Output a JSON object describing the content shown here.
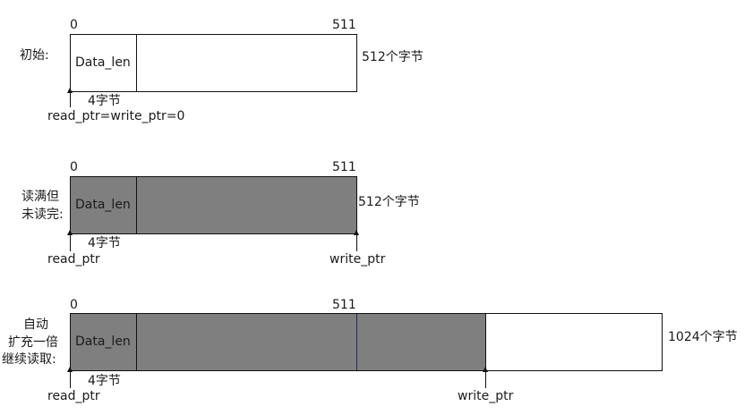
{
  "diagram": {
    "colors": {
      "filled": "#7f7f7f",
      "empty": "#ffffff",
      "border": "#111111"
    },
    "rows": [
      {
        "state_label": "初始:",
        "start_index": "0",
        "end_index": "511",
        "header_label": "Data_len",
        "size_label": "512个字节",
        "header_size": "4字节",
        "pointer_labels": [
          "read_ptr=write_ptr=0"
        ]
      },
      {
        "state_label_line1": "读满但",
        "state_label_line2": "未读完:",
        "start_index": "0",
        "end_index": "511",
        "header_label": "Data_len",
        "size_label": "512个字节",
        "header_size": "4字节",
        "pointer_labels": [
          "read_ptr",
          "write_ptr"
        ]
      },
      {
        "state_label_line1": "自动",
        "state_label_line2": "扩充一倍",
        "state_label_line3": "继续读取:",
        "start_index": "0",
        "end_index": "511",
        "header_label": "Data_len",
        "size_label": "1024个字节",
        "header_size": "4字节",
        "pointer_labels": [
          "read_ptr",
          "write_ptr"
        ]
      }
    ]
  }
}
